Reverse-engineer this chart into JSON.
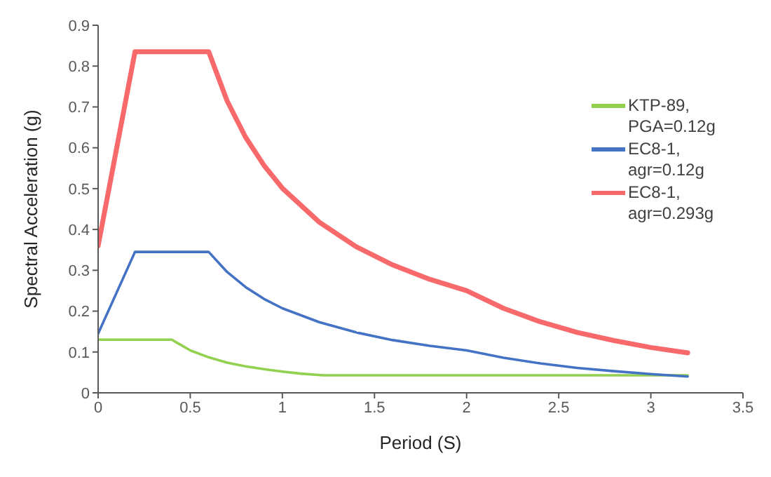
{
  "chart_data": {
    "type": "line",
    "xlabel": "Period (S)",
    "ylabel": "Spectral Acceleration (g)",
    "xlim": [
      0,
      3.5
    ],
    "xticks": [
      0,
      0.5,
      1,
      1.5,
      2,
      2.5,
      3,
      3.5
    ],
    "ylim": [
      0,
      0.9
    ],
    "yticks": [
      0,
      0.1,
      0.2,
      0.3,
      0.4,
      0.5,
      0.6,
      0.7,
      0.8,
      0.9
    ],
    "grid": false,
    "legend": "top right",
    "marker": "none",
    "line_style": "solid",
    "series": [
      {
        "name": "KTP-89, PGA=0.12g",
        "color": "#92d050",
        "x": [
          0,
          0.4,
          0.5,
          0.6,
          0.7,
          0.8,
          0.9,
          1.0,
          1.1,
          1.22,
          3.2
        ],
        "values": [
          0.13,
          0.13,
          0.104,
          0.087,
          0.074,
          0.065,
          0.058,
          0.052,
          0.047,
          0.043,
          0.043
        ]
      },
      {
        "name": "EC8-1, agr=0.12g",
        "color": "#4472c4",
        "x": [
          0,
          0.2,
          0.6,
          0.7,
          0.8,
          0.9,
          1.0,
          1.2,
          1.4,
          1.6,
          1.8,
          2.0,
          2.2,
          2.4,
          2.6,
          2.8,
          3.0,
          3.2
        ],
        "values": [
          0.145,
          0.345,
          0.345,
          0.296,
          0.259,
          0.23,
          0.207,
          0.173,
          0.148,
          0.129,
          0.115,
          0.104,
          0.086,
          0.072,
          0.061,
          0.053,
          0.046,
          0.04
        ]
      },
      {
        "name": "EC8-1, agr=0.293g",
        "color": "#f8696b",
        "x": [
          0,
          0.2,
          0.6,
          0.7,
          0.8,
          0.9,
          1.0,
          1.2,
          1.4,
          1.6,
          1.8,
          2.0,
          2.2,
          2.4,
          2.6,
          2.8,
          3.0,
          3.2
        ],
        "values": [
          0.36,
          0.835,
          0.835,
          0.715,
          0.626,
          0.557,
          0.501,
          0.418,
          0.358,
          0.313,
          0.278,
          0.25,
          0.207,
          0.174,
          0.148,
          0.128,
          0.111,
          0.098
        ]
      }
    ]
  }
}
